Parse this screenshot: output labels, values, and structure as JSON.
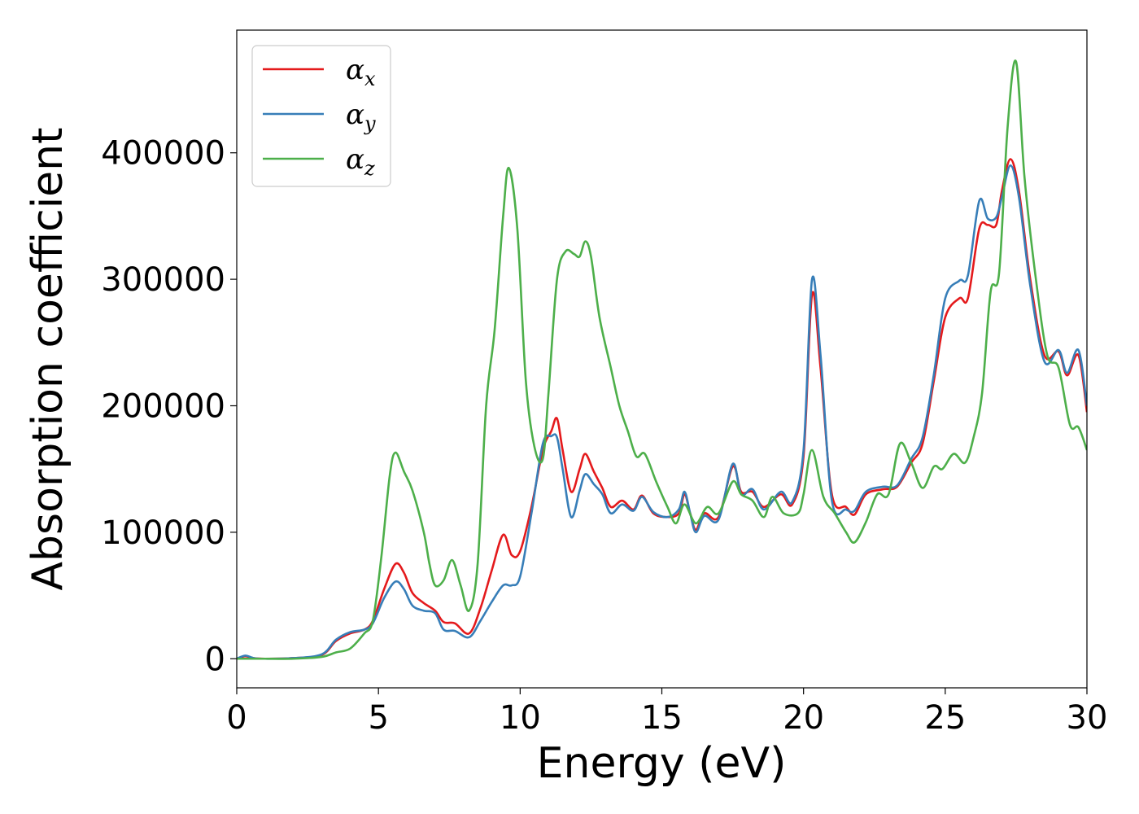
{
  "chart_data": {
    "type": "line",
    "title": "",
    "xlabel": "Energy (eV)",
    "ylabel": "Absorption coefficient",
    "xlim": [
      0,
      30
    ],
    "ylim": [
      -23000,
      497000
    ],
    "x_ticks": [
      0,
      5,
      10,
      15,
      20,
      25,
      30
    ],
    "y_ticks": [
      0,
      100000,
      200000,
      300000,
      400000
    ],
    "grid": false,
    "legend_position": "upper-left",
    "series": [
      {
        "name": "αx",
        "symbol": "α",
        "subscript": "x",
        "color": "#e41a1c",
        "points": [
          [
            0,
            0
          ],
          [
            0.3,
            2000
          ],
          [
            0.6,
            500
          ],
          [
            1,
            0
          ],
          [
            2,
            500
          ],
          [
            3,
            3000
          ],
          [
            3.5,
            14000
          ],
          [
            4,
            20000
          ],
          [
            4.5,
            23000
          ],
          [
            4.8,
            30000
          ],
          [
            5.2,
            55000
          ],
          [
            5.6,
            75000
          ],
          [
            5.9,
            68000
          ],
          [
            6.2,
            52000
          ],
          [
            6.6,
            44000
          ],
          [
            7,
            38000
          ],
          [
            7.3,
            29000
          ],
          [
            7.7,
            28000
          ],
          [
            8.2,
            20000
          ],
          [
            8.6,
            40000
          ],
          [
            9,
            70000
          ],
          [
            9.4,
            98000
          ],
          [
            9.7,
            82000
          ],
          [
            10,
            85000
          ],
          [
            10.4,
            120000
          ],
          [
            10.8,
            165000
          ],
          [
            11.1,
            180000
          ],
          [
            11.3,
            190000
          ],
          [
            11.5,
            165000
          ],
          [
            11.8,
            132000
          ],
          [
            12.1,
            150000
          ],
          [
            12.3,
            162000
          ],
          [
            12.6,
            148000
          ],
          [
            12.9,
            135000
          ],
          [
            13.2,
            120000
          ],
          [
            13.6,
            125000
          ],
          [
            14,
            118000
          ],
          [
            14.3,
            129000
          ],
          [
            14.7,
            115000
          ],
          [
            15.2,
            112000
          ],
          [
            15.6,
            115000
          ],
          [
            15.8,
            130000
          ],
          [
            16.0,
            115000
          ],
          [
            16.2,
            102000
          ],
          [
            16.5,
            115000
          ],
          [
            17,
            112000
          ],
          [
            17.5,
            152000
          ],
          [
            17.8,
            132000
          ],
          [
            18.2,
            132000
          ],
          [
            18.6,
            120000
          ],
          [
            19.2,
            130000
          ],
          [
            19.6,
            122000
          ],
          [
            20,
            160000
          ],
          [
            20.3,
            288000
          ],
          [
            20.6,
            230000
          ],
          [
            21,
            130000
          ],
          [
            21.5,
            120000
          ],
          [
            21.8,
            114000
          ],
          [
            22.2,
            130000
          ],
          [
            22.8,
            134000
          ],
          [
            23.3,
            136000
          ],
          [
            23.8,
            155000
          ],
          [
            24.2,
            170000
          ],
          [
            24.6,
            220000
          ],
          [
            25,
            270000
          ],
          [
            25.5,
            285000
          ],
          [
            25.8,
            285000
          ],
          [
            26.2,
            340000
          ],
          [
            26.5,
            343000
          ],
          [
            26.8,
            343000
          ],
          [
            27.0,
            370000
          ],
          [
            27.3,
            395000
          ],
          [
            27.6,
            370000
          ],
          [
            28,
            300000
          ],
          [
            28.5,
            240000
          ],
          [
            29,
            243000
          ],
          [
            29.3,
            224000
          ],
          [
            29.7,
            240000
          ],
          [
            30,
            195000
          ]
        ]
      },
      {
        "name": "αy",
        "symbol": "α",
        "subscript": "y",
        "color": "#377eb8",
        "points": [
          [
            0,
            0
          ],
          [
            0.3,
            2500
          ],
          [
            0.6,
            500
          ],
          [
            1,
            0
          ],
          [
            2,
            500
          ],
          [
            3,
            3500
          ],
          [
            3.5,
            15000
          ],
          [
            4,
            21000
          ],
          [
            4.5,
            23000
          ],
          [
            4.8,
            28000
          ],
          [
            5.2,
            48000
          ],
          [
            5.6,
            61000
          ],
          [
            5.9,
            55000
          ],
          [
            6.2,
            42000
          ],
          [
            6.6,
            38000
          ],
          [
            7,
            36000
          ],
          [
            7.3,
            23000
          ],
          [
            7.7,
            22000
          ],
          [
            8.2,
            17000
          ],
          [
            8.6,
            30000
          ],
          [
            9,
            45000
          ],
          [
            9.4,
            58000
          ],
          [
            9.7,
            58000
          ],
          [
            10,
            65000
          ],
          [
            10.4,
            115000
          ],
          [
            10.8,
            170000
          ],
          [
            11.1,
            176000
          ],
          [
            11.3,
            175000
          ],
          [
            11.5,
            150000
          ],
          [
            11.8,
            112000
          ],
          [
            12.1,
            133000
          ],
          [
            12.3,
            146000
          ],
          [
            12.6,
            138000
          ],
          [
            12.9,
            130000
          ],
          [
            13.2,
            115000
          ],
          [
            13.6,
            122000
          ],
          [
            14,
            117000
          ],
          [
            14.3,
            128000
          ],
          [
            14.7,
            116000
          ],
          [
            15.2,
            112000
          ],
          [
            15.6,
            118000
          ],
          [
            15.8,
            132000
          ],
          [
            16.0,
            115000
          ],
          [
            16.2,
            100000
          ],
          [
            16.5,
            113000
          ],
          [
            17,
            110000
          ],
          [
            17.5,
            154000
          ],
          [
            17.8,
            130000
          ],
          [
            18.2,
            134000
          ],
          [
            18.6,
            118000
          ],
          [
            19.2,
            132000
          ],
          [
            19.6,
            124000
          ],
          [
            20,
            165000
          ],
          [
            20.3,
            300000
          ],
          [
            20.6,
            240000
          ],
          [
            21,
            125000
          ],
          [
            21.5,
            118000
          ],
          [
            21.8,
            117000
          ],
          [
            22.2,
            132000
          ],
          [
            22.8,
            136000
          ],
          [
            23.3,
            137000
          ],
          [
            23.8,
            158000
          ],
          [
            24.2,
            175000
          ],
          [
            24.6,
            225000
          ],
          [
            25,
            285000
          ],
          [
            25.5,
            299000
          ],
          [
            25.8,
            303000
          ],
          [
            26.2,
            362000
          ],
          [
            26.5,
            348000
          ],
          [
            26.8,
            349000
          ],
          [
            27.0,
            365000
          ],
          [
            27.3,
            390000
          ],
          [
            27.6,
            365000
          ],
          [
            28,
            295000
          ],
          [
            28.5,
            235000
          ],
          [
            29,
            244000
          ],
          [
            29.3,
            226000
          ],
          [
            29.7,
            244000
          ],
          [
            30,
            200000
          ]
        ]
      },
      {
        "name": "αz",
        "symbol": "α",
        "subscript": "z",
        "color": "#4daf4a",
        "points": [
          [
            0,
            0
          ],
          [
            0.5,
            0
          ],
          [
            1,
            0
          ],
          [
            2,
            0
          ],
          [
            3,
            1500
          ],
          [
            3.5,
            5000
          ],
          [
            4,
            8000
          ],
          [
            4.5,
            20000
          ],
          [
            4.8,
            30000
          ],
          [
            5.1,
            80000
          ],
          [
            5.4,
            145000
          ],
          [
            5.6,
            163000
          ],
          [
            5.9,
            148000
          ],
          [
            6.2,
            133000
          ],
          [
            6.6,
            100000
          ],
          [
            6.8,
            75000
          ],
          [
            7.0,
            58000
          ],
          [
            7.3,
            62000
          ],
          [
            7.6,
            78000
          ],
          [
            7.9,
            58000
          ],
          [
            8.2,
            38000
          ],
          [
            8.5,
            75000
          ],
          [
            8.8,
            200000
          ],
          [
            9.1,
            260000
          ],
          [
            9.4,
            350000
          ],
          [
            9.6,
            388000
          ],
          [
            9.9,
            340000
          ],
          [
            10.2,
            220000
          ],
          [
            10.5,
            168000
          ],
          [
            10.8,
            158000
          ],
          [
            11.0,
            210000
          ],
          [
            11.3,
            300000
          ],
          [
            11.6,
            322000
          ],
          [
            11.9,
            320000
          ],
          [
            12.1,
            318000
          ],
          [
            12.3,
            330000
          ],
          [
            12.5,
            318000
          ],
          [
            12.8,
            270000
          ],
          [
            13.2,
            230000
          ],
          [
            13.5,
            200000
          ],
          [
            13.8,
            180000
          ],
          [
            14.1,
            160000
          ],
          [
            14.4,
            162000
          ],
          [
            14.8,
            140000
          ],
          [
            15.2,
            120000
          ],
          [
            15.5,
            107000
          ],
          [
            15.8,
            122000
          ],
          [
            16.2,
            107000
          ],
          [
            16.6,
            120000
          ],
          [
            17,
            115000
          ],
          [
            17.5,
            140000
          ],
          [
            17.8,
            130000
          ],
          [
            18.2,
            125000
          ],
          [
            18.6,
            112000
          ],
          [
            18.9,
            128000
          ],
          [
            19.3,
            115000
          ],
          [
            19.8,
            115000
          ],
          [
            20.0,
            130000
          ],
          [
            20.3,
            165000
          ],
          [
            20.7,
            128000
          ],
          [
            21.1,
            115000
          ],
          [
            21.5,
            100000
          ],
          [
            21.8,
            92000
          ],
          [
            22.2,
            108000
          ],
          [
            22.6,
            130000
          ],
          [
            23.0,
            130000
          ],
          [
            23.4,
            170000
          ],
          [
            23.8,
            155000
          ],
          [
            24.2,
            135000
          ],
          [
            24.6,
            152000
          ],
          [
            24.9,
            150000
          ],
          [
            25.3,
            162000
          ],
          [
            25.7,
            155000
          ],
          [
            26.0,
            175000
          ],
          [
            26.3,
            210000
          ],
          [
            26.6,
            290000
          ],
          [
            26.9,
            305000
          ],
          [
            27.2,
            420000
          ],
          [
            27.5,
            472000
          ],
          [
            27.8,
            380000
          ],
          [
            28.2,
            300000
          ],
          [
            28.6,
            240000
          ],
          [
            29,
            230000
          ],
          [
            29.4,
            185000
          ],
          [
            29.7,
            183000
          ],
          [
            30,
            165000
          ]
        ]
      }
    ]
  }
}
